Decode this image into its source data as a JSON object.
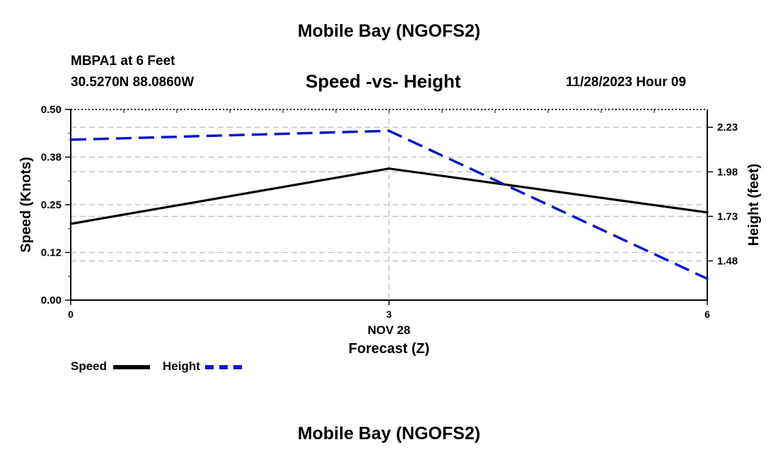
{
  "header": {
    "title": "Mobile Bay (NGOFS2)",
    "station": "MBPA1 at 6 Feet",
    "coordinates": "30.5270N  88.0860W",
    "subtitle": "Speed -vs- Height",
    "timestamp": "11/28/2023 Hour 09"
  },
  "footer": {
    "title": "Mobile Bay (NGOFS2)"
  },
  "legend": {
    "speed_label": "Speed",
    "height_label": "Height"
  },
  "colors": {
    "speed": "#000000",
    "height": "#0b16c9",
    "grid": "#bdbdbd"
  },
  "chart_data": {
    "type": "line",
    "title": "Speed -vs- Height",
    "xlabel": "Forecast (Z)",
    "x_date_label": "NOV 28",
    "x": [
      0,
      3,
      6
    ],
    "x_tick_labels": [
      "0",
      "3",
      "6"
    ],
    "xlim": [
      0,
      6
    ],
    "y_left": {
      "label": "Speed (Knots)",
      "ylim": [
        0,
        0.5
      ],
      "ticks": [
        0,
        0.125,
        0.25,
        0.375,
        0.5
      ],
      "tick_labels": [
        "0.00",
        "0.12",
        "0.25",
        "0.38",
        "0.50"
      ]
    },
    "y_right": {
      "label": "Height (feet)",
      "ylim": [
        1.26,
        2.33
      ],
      "ticks": [
        1.48,
        1.73,
        1.98,
        2.23
      ],
      "tick_labels": [
        "1.48",
        "1.73",
        "1.98",
        "2.23"
      ]
    },
    "series": [
      {
        "name": "Speed",
        "axis": "left",
        "style": "solid",
        "values": [
          0.2,
          0.345,
          0.23
        ]
      },
      {
        "name": "Height",
        "axis": "right",
        "style": "dashed",
        "values": [
          2.16,
          2.21,
          1.38
        ]
      }
    ],
    "grid": true
  }
}
